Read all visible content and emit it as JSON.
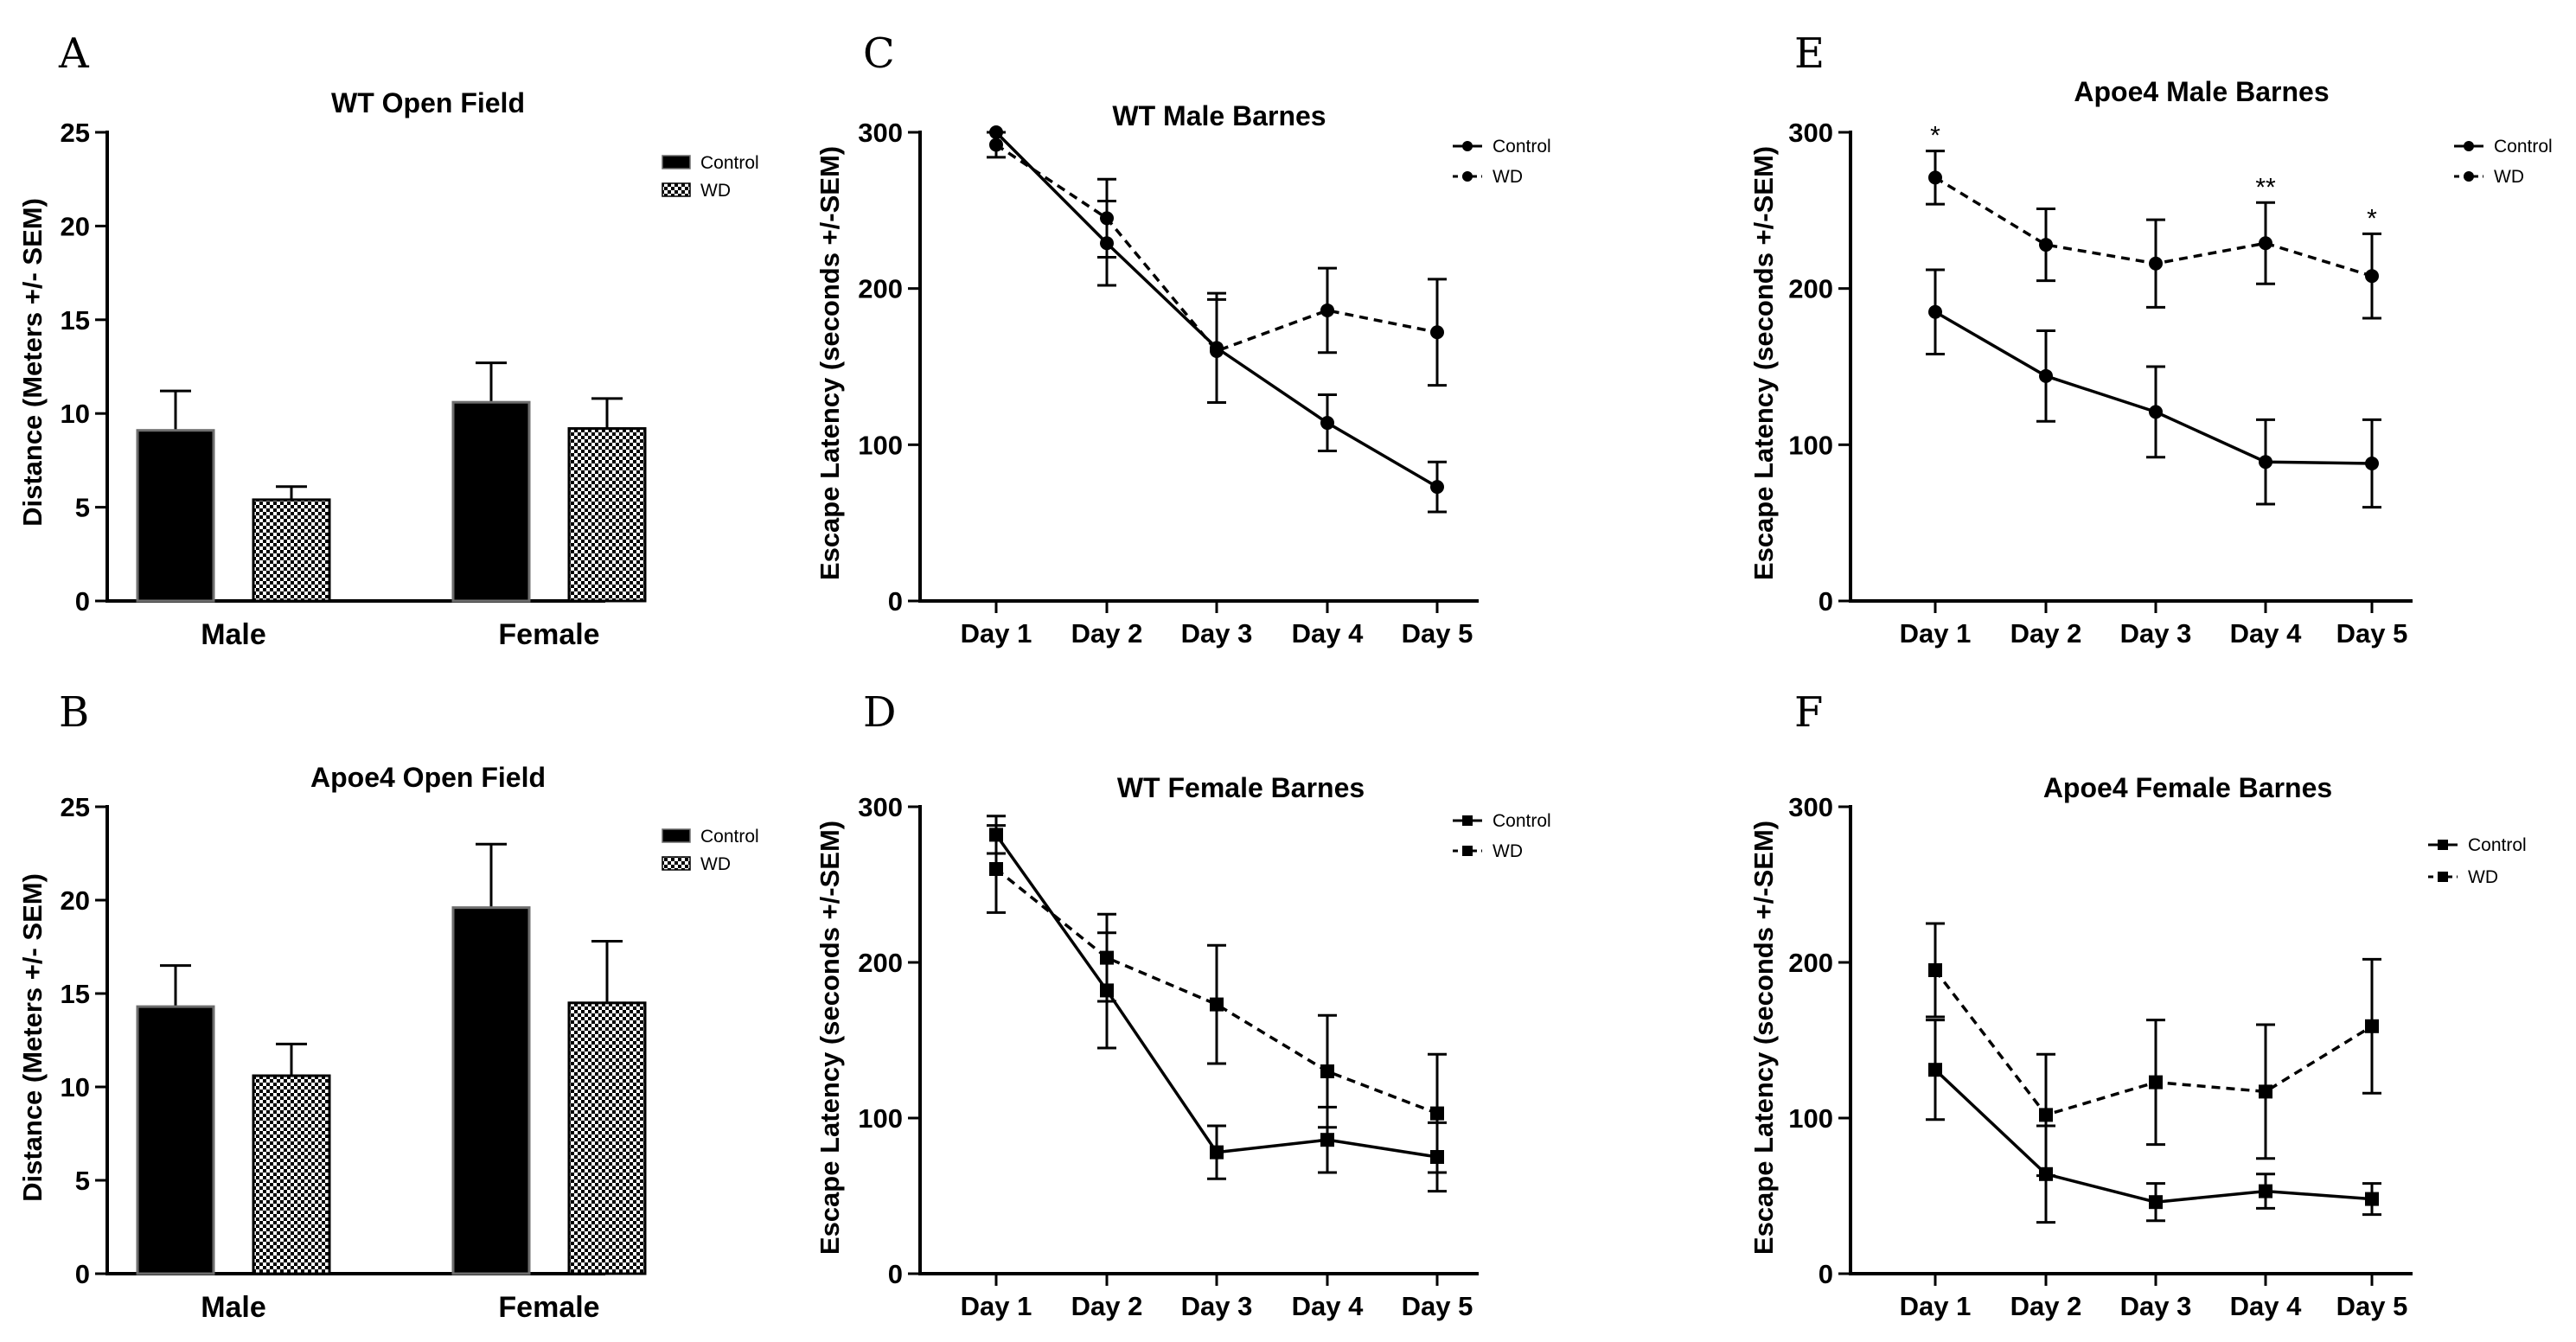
{
  "chart_data": [
    {
      "id": "A",
      "letter": "A",
      "type": "bar",
      "title": "WT Open Field",
      "ylabel": "Distance (Meters +/- SEM)",
      "categories": [
        "Male",
        "Female"
      ],
      "ylim": [
        0,
        25
      ],
      "yticks": [
        0,
        5,
        10,
        15,
        20,
        25
      ],
      "ytick_labels": [
        "0",
        "5",
        "10",
        "15",
        "20",
        "25"
      ],
      "series": [
        {
          "name": "Control",
          "pattern": "solid",
          "values": [
            9.1,
            10.6
          ],
          "errors": [
            2.1,
            2.1
          ]
        },
        {
          "name": "WD",
          "pattern": "checker",
          "values": [
            5.4,
            9.2
          ],
          "errors": [
            0.7,
            1.6
          ]
        }
      ]
    },
    {
      "id": "B",
      "letter": "B",
      "type": "bar",
      "title": "Apoe4 Open Field",
      "ylabel": "Distance (Meters +/- SEM)",
      "categories": [
        "Male",
        "Female"
      ],
      "ylim": [
        0,
        25
      ],
      "yticks": [
        0,
        5,
        10,
        15,
        20,
        25
      ],
      "ytick_labels": [
        "0",
        "5",
        "10",
        "15",
        "20",
        "25"
      ],
      "series": [
        {
          "name": "Control",
          "pattern": "solid",
          "values": [
            14.3,
            19.6
          ],
          "errors": [
            2.2,
            3.4
          ]
        },
        {
          "name": "WD",
          "pattern": "checker",
          "values": [
            10.6,
            14.5
          ],
          "errors": [
            1.7,
            3.3
          ]
        }
      ]
    },
    {
      "id": "C",
      "letter": "C",
      "type": "line",
      "title": "WT Male Barnes",
      "ylabel": "Escape Latency (seconds +/-SEM)",
      "categories": [
        "Day 1",
        "Day 2",
        "Day 3",
        "Day 4",
        "Day 5"
      ],
      "ylim": [
        0,
        300
      ],
      "yticks": [
        0,
        100,
        200,
        300
      ],
      "ytick_labels": [
        "0",
        "100",
        "200",
        "300"
      ],
      "marker": "circle",
      "series": [
        {
          "name": "Control",
          "dash": "solid",
          "values": [
            300,
            229,
            162,
            114,
            73
          ],
          "errors": [
            0,
            27,
            35,
            18,
            16
          ]
        },
        {
          "name": "WD",
          "dash": "dashed",
          "values": [
            292,
            245,
            160,
            186,
            172
          ],
          "errors": [
            8,
            25,
            33,
            27,
            34
          ]
        }
      ],
      "annotations": []
    },
    {
      "id": "D",
      "letter": "D",
      "type": "line",
      "title": "WT Female Barnes",
      "ylabel": "Escape Latency (seconds +/-SEM)",
      "categories": [
        "Day 1",
        "Day 2",
        "Day 3",
        "Day 4",
        "Day 5"
      ],
      "ylim": [
        0,
        300
      ],
      "yticks": [
        0,
        100,
        200,
        300
      ],
      "ytick_labels": [
        "0",
        "100",
        "200",
        "300"
      ],
      "marker": "square",
      "series": [
        {
          "name": "Control",
          "dash": "solid",
          "values": [
            282,
            182,
            78,
            86,
            75
          ],
          "errors": [
            12,
            37,
            17,
            21,
            22
          ]
        },
        {
          "name": "WD",
          "dash": "dashed",
          "values": [
            260,
            203,
            173,
            130,
            103
          ],
          "errors": [
            28,
            28,
            38,
            36,
            38
          ]
        }
      ],
      "annotations": []
    },
    {
      "id": "E",
      "letter": "E",
      "type": "line",
      "title": "Apoe4 Male Barnes",
      "ylabel": "Escape Latency (seconds +/-SEM)",
      "categories": [
        "Day 1",
        "Day 2",
        "Day 3",
        "Day 4",
        "Day 5"
      ],
      "ylim": [
        0,
        300
      ],
      "yticks": [
        0,
        100,
        200,
        300
      ],
      "ytick_labels": [
        "0",
        "100",
        "200",
        "300"
      ],
      "marker": "circle",
      "series": [
        {
          "name": "Control",
          "dash": "solid",
          "values": [
            185,
            144,
            121,
            89,
            88
          ],
          "errors": [
            27,
            29,
            29,
            27,
            28
          ]
        },
        {
          "name": "WD",
          "dash": "dashed",
          "values": [
            271,
            228,
            216,
            229,
            208
          ],
          "errors": [
            17,
            23,
            28,
            26,
            27
          ]
        }
      ],
      "annotations": [
        {
          "day": "Day 1",
          "text": "*"
        },
        {
          "day": "Day 4",
          "text": "**"
        },
        {
          "day": "Day 5",
          "text": "*"
        }
      ]
    },
    {
      "id": "F",
      "letter": "F",
      "type": "line",
      "title": "Apoe4 Female Barnes",
      "ylabel": "Escape Latency (seconds +/-SEM)",
      "categories": [
        "Day 1",
        "Day 2",
        "Day 3",
        "Day 4",
        "Day 5"
      ],
      "ylim": [
        0,
        300
      ],
      "yticks": [
        0,
        100,
        200,
        300
      ],
      "ytick_labels": [
        "0",
        "100",
        "200",
        "300"
      ],
      "marker": "square",
      "series": [
        {
          "name": "Control",
          "dash": "solid",
          "values": [
            131,
            64,
            46,
            53,
            48
          ],
          "errors": [
            32,
            31,
            12,
            11,
            10
          ]
        },
        {
          "name": "WD",
          "dash": "dashed",
          "values": [
            195,
            102,
            123,
            117,
            159
          ],
          "errors": [
            30,
            39,
            40,
            43,
            43
          ]
        }
      ],
      "annotations": []
    }
  ]
}
